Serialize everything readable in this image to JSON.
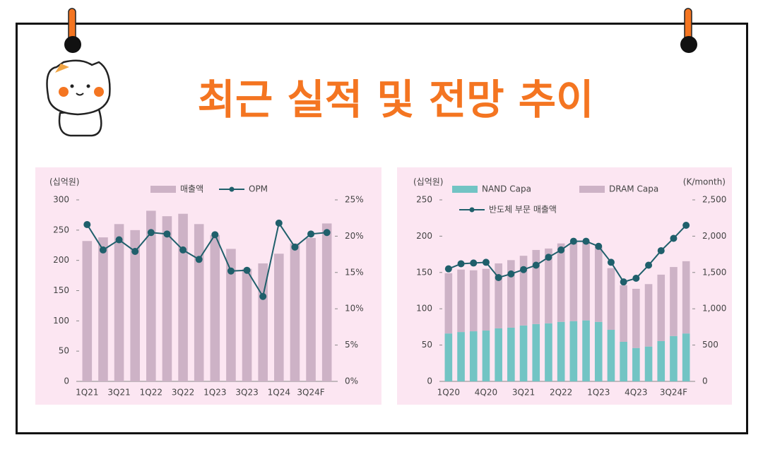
{
  "title": "최근 실적 및 전망 추이",
  "chart_data": [
    {
      "type": "combo",
      "y_label": "(십억원)",
      "categories": [
        "1Q21",
        null,
        "3Q21",
        null,
        "1Q22",
        null,
        "3Q22",
        null,
        "1Q23",
        null,
        "3Q23",
        null,
        "1Q24",
        null,
        "3Q24F",
        null
      ],
      "series": [
        {
          "name": "매출액",
          "type": "bar",
          "color": "#cdb2c6",
          "values": [
            232,
            238,
            260,
            250,
            282,
            273,
            277,
            260,
            242,
            219,
            186,
            195,
            211,
            228,
            237,
            261
          ]
        },
        {
          "name": "OPM",
          "type": "line",
          "axis": "y2",
          "color": "#1f5f6b",
          "values": [
            21.6,
            18.1,
            19.5,
            17.9,
            20.5,
            20.3,
            18.1,
            16.8,
            20.2,
            15.2,
            15.3,
            11.7,
            21.8,
            18.5,
            20.3,
            20.5
          ]
        }
      ],
      "ylim": [
        0,
        300
      ],
      "yticks": [
        0,
        50,
        100,
        150,
        200,
        250,
        300
      ],
      "y2lim": [
        0,
        25
      ],
      "y2ticks": [
        {
          "value": 0,
          "label": "0%"
        },
        {
          "value": 5,
          "label": "5%"
        },
        {
          "value": 10,
          "label": "10%"
        },
        {
          "value": 15,
          "label": "15%"
        },
        {
          "value": 20,
          "label": "20%"
        },
        {
          "value": 25,
          "label": "25%"
        }
      ]
    },
    {
      "type": "combo",
      "stacked": true,
      "y_label": "(십억원)",
      "y2_label": "(K/month)",
      "categories": [
        "1Q20",
        null,
        null,
        "4Q20",
        null,
        null,
        "3Q21",
        null,
        null,
        "2Q22",
        null,
        null,
        "1Q23",
        null,
        null,
        "4Q23",
        null,
        null,
        "3Q24F",
        null
      ],
      "series": [
        {
          "name": "NAND Capa",
          "type": "bar",
          "axis": "y2",
          "color": "#72c4c4",
          "values": [
            660,
            680,
            690,
            700,
            730,
            740,
            770,
            790,
            800,
            820,
            830,
            840,
            820,
            710,
            545,
            460,
            480,
            555,
            625,
            660
          ]
        },
        {
          "name": "DRAM Capa",
          "type": "bar",
          "axis": "y2",
          "color": "#cdb2c6",
          "values": [
            830,
            860,
            840,
            850,
            895,
            930,
            960,
            1020,
            1030,
            1080,
            1085,
            1085,
            1030,
            850,
            780,
            815,
            860,
            915,
            950,
            995
          ]
        },
        {
          "name": "반도체 부문 매출액",
          "type": "line",
          "color": "#1f5f6b",
          "values": [
            155,
            162,
            163,
            164,
            143,
            148,
            154,
            160,
            171,
            181,
            193,
            193,
            186,
            164,
            137,
            142,
            160,
            180,
            197,
            215
          ]
        }
      ],
      "ylim": [
        0,
        250
      ],
      "yticks": [
        0,
        50,
        100,
        150,
        200,
        250
      ],
      "y2lim": [
        0,
        2500
      ],
      "y2ticks": [
        0,
        500,
        {
          "value": 1000,
          "label": "1,000"
        },
        {
          "value": 1500,
          "label": "1,500"
        },
        {
          "value": 2000,
          "label": "2,000"
        },
        {
          "value": 2500,
          "label": "2,500"
        }
      ]
    }
  ]
}
